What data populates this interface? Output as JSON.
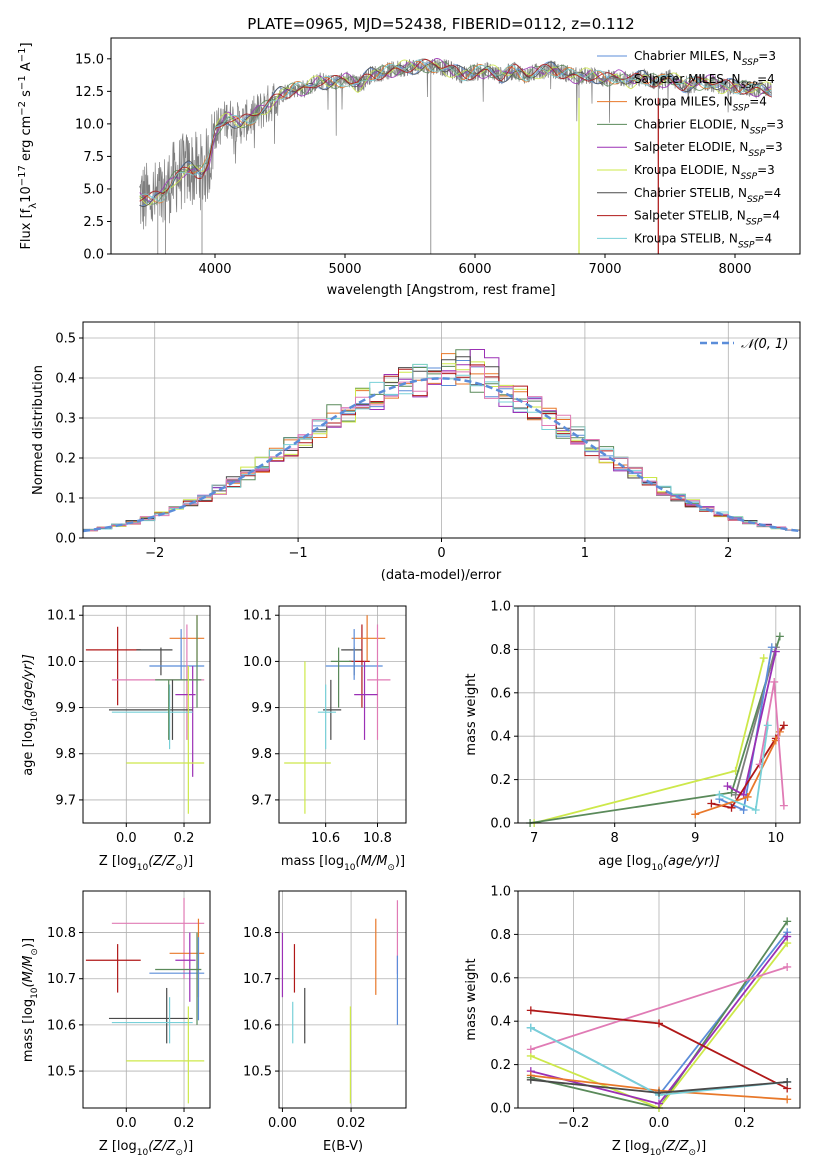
{
  "figure_title": "PLATE=0965, MJD=52438, FIBERID=0112, z=0.112",
  "colors": {
    "Chabrier MILES": "#5b8dd9",
    "Salpeter MILES": "#7e7e7e",
    "Kroupa MILES": "#e8782a",
    "Chabrier ELODIE": "#5a8a5a",
    "Salpeter ELODIE": "#9b30b5",
    "Kroupa ELODIE": "#cde84a",
    "Chabrier STELIB": "#4a4a4a",
    "Salpeter STELIB": "#b01818",
    "Kroupa STELIB": "#78d0d8",
    "Pink": "#e07bb5"
  },
  "chart_data": [
    {
      "id": "spectrum",
      "type": "line",
      "title": "PLATE=0965, MJD=52438, FIBERID=0112, z=0.112",
      "xlabel": "wavelength [Angstrom, rest frame]",
      "ylabel": "Flux [f",
      "ylabel_sub": "λ",
      "ylabel_rest": "10",
      "ylabel_exp": "−17",
      "ylabel_tail": " erg cm",
      "xlim": [
        3200,
        8500
      ],
      "ylim": [
        0,
        16.6
      ],
      "xticks": [
        "4000",
        "5000",
        "6000",
        "7000",
        "8000"
      ],
      "yticks": [
        "0.0",
        "2.5",
        "5.0",
        "7.5",
        "10.0",
        "12.5",
        "15.0"
      ],
      "legend": [
        "Chabrier MILES, N",
        "Salpeter MILES, N",
        "Kroupa MILES, N",
        "Chabrier ELODIE, N",
        "Salpeter ELODIE, N",
        "Kroupa ELODIE, N",
        "Chabrier STELIB, N",
        "Salpeter STELIB, N",
        "Kroupa STELIB, N"
      ],
      "legend_sub": "SSP",
      "legend_vals": [
        "=3",
        "=4",
        "=4",
        "=3",
        "=3",
        "=3",
        "=4",
        "=4",
        "=4"
      ],
      "continuum": [
        [
          3420,
          4.3
        ],
        [
          3500,
          4.1
        ],
        [
          3600,
          4.6
        ],
        [
          3700,
          6.0
        ],
        [
          3800,
          6.6
        ],
        [
          3900,
          6.3
        ],
        [
          3950,
          7.0
        ],
        [
          4000,
          9.5
        ],
        [
          4100,
          10.5
        ],
        [
          4200,
          10.0
        ],
        [
          4300,
          10.6
        ],
        [
          4400,
          11.4
        ],
        [
          4500,
          12.3
        ],
        [
          4600,
          12.7
        ],
        [
          4700,
          12.7
        ],
        [
          4800,
          13.3
        ],
        [
          4900,
          13.1
        ],
        [
          5000,
          13.4
        ],
        [
          5100,
          13.0
        ],
        [
          5200,
          13.8
        ],
        [
          5300,
          14.0
        ],
        [
          5400,
          14.2
        ],
        [
          5500,
          14.4
        ],
        [
          5600,
          14.4
        ],
        [
          5700,
          14.5
        ],
        [
          5800,
          14.2
        ],
        [
          5900,
          13.8
        ],
        [
          6000,
          14.0
        ],
        [
          6100,
          14.1
        ],
        [
          6200,
          13.7
        ],
        [
          6300,
          14.1
        ],
        [
          6400,
          13.7
        ],
        [
          6500,
          14.1
        ],
        [
          6600,
          14.2
        ],
        [
          6700,
          13.9
        ],
        [
          6800,
          13.6
        ],
        [
          6900,
          13.8
        ],
        [
          7000,
          13.4
        ],
        [
          7100,
          13.6
        ],
        [
          7200,
          13.3
        ],
        [
          7300,
          13.6
        ],
        [
          7400,
          13.2
        ],
        [
          7500,
          13.5
        ],
        [
          7600,
          13.0
        ],
        [
          7700,
          13.1
        ],
        [
          7800,
          13.2
        ],
        [
          7900,
          12.9
        ],
        [
          8000,
          12.9
        ],
        [
          8100,
          12.7
        ],
        [
          8200,
          12.7
        ],
        [
          8280,
          12.6
        ]
      ]
    },
    {
      "id": "histogram",
      "type": "bar",
      "xlabel": "(data-model)/error",
      "ylabel": "Normed distribution",
      "xlim": [
        -2.5,
        2.5
      ],
      "ylim": [
        0,
        0.54
      ],
      "xticks": [
        "−2",
        "−1",
        "0",
        "1",
        "2"
      ],
      "yticks": [
        "0.0",
        "0.1",
        "0.2",
        "0.3",
        "0.4",
        "0.5"
      ],
      "legend": [
        "𝒩(0, 1)"
      ],
      "bin_width": 0.1
    },
    {
      "id": "age_vs_Z",
      "type": "scatter",
      "xlabel": "Z [log",
      "xlabel_sub": "10",
      "xlabel_tail": "(Z/Z",
      "xlabel_end": ")]",
      "ylabel": "age  [log",
      "ylabel_sub": "10",
      "ylabel_tail": "(age/yr)]",
      "xlim": [
        -0.15,
        0.29
      ],
      "ylim": [
        9.65,
        10.12
      ],
      "xticks": [
        "0.0",
        "0.2"
      ],
      "yticks": [
        "9.7",
        "9.8",
        "9.9",
        "10.0",
        "10.1"
      ],
      "points": [
        {
          "c": "#b01818",
          "x": -0.03,
          "xe": [
            -0.14,
            0.05
          ],
          "y": 10.025,
          "ye": [
            9.905,
            10.075
          ]
        },
        {
          "c": "#4a4a4a",
          "x": 0.12,
          "xe": [
            0.035,
            0.16
          ],
          "y": 10.025,
          "ye": [
            9.97,
            10.03
          ]
        },
        {
          "c": "#e8782a",
          "x": 0.245,
          "xe": [
            0.15,
            0.27
          ],
          "y": 10.05,
          "ye": [
            10.0,
            10.1
          ]
        },
        {
          "c": "#5b8dd9",
          "x": 0.19,
          "xe": [
            0.08,
            0.27
          ],
          "y": 9.99,
          "ye": [
            9.96,
            10.07
          ]
        },
        {
          "c": "#e07bb5",
          "x": 0.21,
          "xe": [
            -0.05,
            0.27
          ],
          "y": 9.96,
          "ye": [
            9.83,
            10.08
          ]
        },
        {
          "c": "#9b30b5",
          "x": 0.23,
          "xe": [
            0.17,
            0.24
          ],
          "y": 9.928,
          "ye": [
            9.75,
            9.99
          ]
        },
        {
          "c": "#5a8a5a",
          "x": 0.245,
          "xe": [
            0.1,
            0.26
          ],
          "y": 9.96,
          "ye": [
            9.9,
            10.1
          ]
        },
        {
          "c": "#4a4a4a",
          "x": 0.16,
          "xe": [
            -0.06,
            0.23
          ],
          "y": 9.895,
          "ye": [
            9.83,
            9.96
          ]
        },
        {
          "c": "#78d0d8",
          "x": 0.15,
          "xe": [
            -0.05,
            0.23
          ],
          "y": 9.89,
          "ye": [
            9.81,
            9.95
          ]
        },
        {
          "c": "#5a8a5a",
          "x": 0.147,
          "xe": [
            0.14,
            0.15
          ],
          "y": 9.895,
          "ye": [
            9.83,
            9.96
          ]
        },
        {
          "c": "#cde84a",
          "x": 0.215,
          "xe": [
            0.0,
            0.27
          ],
          "y": 9.78,
          "ye": [
            9.67,
            9.99
          ]
        }
      ]
    },
    {
      "id": "age_vs_mass",
      "type": "scatter",
      "xlabel": "mass [log",
      "xlabel_sub": "10",
      "xlabel_tail": "(M/M",
      "xlabel_end": ")]",
      "xlim": [
        10.42,
        10.91
      ],
      "ylim": [
        9.65,
        10.12
      ],
      "xticks": [
        "10.6",
        "10.8"
      ],
      "yticks": [
        "9.7",
        "9.8",
        "9.9",
        "10.0",
        "10.1"
      ],
      "points": [
        {
          "c": "#b01818",
          "x": 10.74,
          "xe": [
            10.69,
            10.77
          ],
          "y": 10.0,
          "ye": [
            9.9,
            10.08
          ]
        },
        {
          "c": "#4a4a4a",
          "x": 10.71,
          "xe": [
            10.66,
            10.74
          ],
          "y": 10.025,
          "ye": [
            9.97,
            10.03
          ]
        },
        {
          "c": "#e8782a",
          "x": 10.76,
          "xe": [
            10.7,
            10.83
          ],
          "y": 10.05,
          "ye": [
            10.0,
            10.1
          ]
        },
        {
          "c": "#5b8dd9",
          "x": 10.71,
          "xe": [
            10.6,
            10.82
          ],
          "y": 9.99,
          "ye": [
            9.96,
            10.07
          ]
        },
        {
          "c": "#e07bb5",
          "x": 10.8,
          "xe": [
            10.76,
            10.85
          ],
          "y": 9.96,
          "ye": [
            9.83,
            10.08
          ]
        },
        {
          "c": "#9b30b5",
          "x": 10.75,
          "xe": [
            10.71,
            10.8
          ],
          "y": 9.928,
          "ye": [
            9.83,
            10.0
          ]
        },
        {
          "c": "#5a8a5a",
          "x": 10.65,
          "xe": [
            10.62,
            10.7
          ],
          "y": 10.0,
          "ye": [
            9.9,
            10.03
          ]
        },
        {
          "c": "#4a4a4a",
          "x": 10.62,
          "xe": [
            10.59,
            10.66
          ],
          "y": 9.895,
          "ye": [
            9.83,
            9.96
          ]
        },
        {
          "c": "#78d0d8",
          "x": 10.6,
          "xe": [
            10.57,
            10.64
          ],
          "y": 9.89,
          "ye": [
            9.81,
            9.95
          ]
        },
        {
          "c": "#cde84a",
          "x": 10.52,
          "xe": [
            10.44,
            10.62
          ],
          "y": 9.78,
          "ye": [
            9.67,
            10.0
          ]
        }
      ]
    },
    {
      "id": "weight_vs_age",
      "type": "line",
      "xlabel": "age  [log",
      "xlabel_sub": "10",
      "xlabel_tail": "(age/yr)]",
      "ylabel": "mass weight",
      "xlim": [
        6.8,
        10.3
      ],
      "ylim": [
        0,
        1.0
      ],
      "xticks": [
        "7",
        "8",
        "9",
        "10"
      ],
      "yticks": [
        "0.0",
        "0.2",
        "0.4",
        "0.6",
        "0.8",
        "1.0"
      ],
      "series": [
        {
          "c": "#cde84a",
          "x": [
            7.0,
            9.5,
            9.85
          ],
          "y": [
            0.0,
            0.24,
            0.76
          ]
        },
        {
          "c": "#5a8a5a",
          "x": [
            6.95,
            9.45,
            10.05
          ],
          "y": [
            0.0,
            0.14,
            0.86
          ]
        },
        {
          "c": "#7e7e7e",
          "x": [
            9.5,
            10.0
          ],
          "y": [
            0.13,
            0.81
          ]
        },
        {
          "c": "#5b8dd9",
          "x": [
            9.3,
            9.6,
            9.95
          ],
          "y": [
            0.11,
            0.06,
            0.81
          ]
        },
        {
          "c": "#9b30b5",
          "x": [
            9.4,
            9.6,
            10.0
          ],
          "y": [
            0.17,
            0.13,
            0.79
          ]
        },
        {
          "c": "#b01818",
          "x": [
            9.2,
            9.45,
            10.0,
            10.1
          ],
          "y": [
            0.09,
            0.07,
            0.39,
            0.45
          ]
        },
        {
          "c": "#e8782a",
          "x": [
            9.0,
            9.65,
            10.0,
            10.05
          ],
          "y": [
            0.04,
            0.12,
            0.38,
            0.42
          ]
        },
        {
          "c": "#e07bb5",
          "x": [
            9.8,
            9.98,
            10.1
          ],
          "y": [
            0.27,
            0.65,
            0.08
          ]
        },
        {
          "c": "#78d0d8",
          "x": [
            9.3,
            9.75,
            9.9
          ],
          "y": [
            0.13,
            0.06,
            0.45
          ]
        }
      ]
    },
    {
      "id": "mass_vs_Z",
      "type": "scatter",
      "xlabel": "Z [log",
      "xlabel_sub": "10",
      "xlabel_tail": "(Z/Z",
      "xlabel_end": ")]",
      "ylabel": "mass [log",
      "ylabel_sub": "10",
      "ylabel_tail": "(M/M",
      "ylabel_end": ")]",
      "xlim": [
        -0.15,
        0.29
      ],
      "ylim": [
        10.42,
        10.89
      ],
      "xticks": [
        "0.0",
        "0.2"
      ],
      "yticks": [
        "10.5",
        "10.6",
        "10.7",
        "10.8"
      ],
      "points": [
        {
          "c": "#b01818",
          "x": -0.03,
          "xe": [
            -0.14,
            0.05
          ],
          "y": 10.74,
          "ye": [
            10.67,
            10.775
          ]
        },
        {
          "c": "#e07bb5",
          "x": 0.2,
          "xe": [
            -0.05,
            0.27
          ],
          "y": 10.82,
          "ye": [
            10.7,
            10.875
          ]
        },
        {
          "c": "#e8782a",
          "x": 0.25,
          "xe": [
            0.15,
            0.27
          ],
          "y": 10.755,
          "ye": [
            10.66,
            10.83
          ]
        },
        {
          "c": "#5b8dd9",
          "x": 0.25,
          "xe": [
            0.08,
            0.27
          ],
          "y": 10.712,
          "ye": [
            10.61,
            10.79
          ]
        },
        {
          "c": "#9b30b5",
          "x": 0.22,
          "xe": [
            0.17,
            0.24
          ],
          "y": 10.74,
          "ye": [
            10.65,
            10.8
          ]
        },
        {
          "c": "#5a8a5a",
          "x": 0.245,
          "xe": [
            0.1,
            0.26
          ],
          "y": 10.72,
          "ye": [
            10.6,
            10.8
          ]
        },
        {
          "c": "#4a4a4a",
          "x": 0.14,
          "xe": [
            -0.06,
            0.23
          ],
          "y": 10.614,
          "ye": [
            10.56,
            10.68
          ]
        },
        {
          "c": "#78d0d8",
          "x": 0.15,
          "xe": [
            -0.05,
            0.23
          ],
          "y": 10.605,
          "ye": [
            10.56,
            10.66
          ]
        },
        {
          "c": "#cde84a",
          "x": 0.215,
          "xe": [
            0.0,
            0.27
          ],
          "y": 10.522,
          "ye": [
            10.43,
            10.64
          ]
        }
      ]
    },
    {
      "id": "mass_vs_ebv",
      "type": "scatter",
      "xlabel": "E(B-V)",
      "xlim": [
        -0.001,
        0.036
      ],
      "ylim": [
        10.42,
        10.89
      ],
      "xticks": [
        "0.00",
        "0.02"
      ],
      "yticks": [
        "10.5",
        "10.6",
        "10.7",
        "10.8"
      ],
      "points": [
        {
          "c": "#9b30b5",
          "x": 0.0,
          "y": 10.74,
          "ye": [
            10.66,
            10.8
          ]
        },
        {
          "c": "#b01818",
          "x": 0.0035,
          "y": 10.74,
          "ye": [
            10.67,
            10.775
          ]
        },
        {
          "c": "#78d0d8",
          "x": 0.003,
          "y": 10.605,
          "ye": [
            10.56,
            10.65
          ]
        },
        {
          "c": "#4a4a4a",
          "x": 0.0065,
          "y": 10.614,
          "ye": [
            10.56,
            10.68
          ]
        },
        {
          "c": "#cde84a",
          "x": 0.0198,
          "y": 10.522,
          "ye": [
            10.43,
            10.64
          ]
        },
        {
          "c": "#e8782a",
          "x": 0.0272,
          "y": 10.755,
          "ye": [
            10.665,
            10.83
          ]
        },
        {
          "c": "#e07bb5",
          "x": 0.0335,
          "y": 10.82,
          "ye": [
            10.71,
            10.87
          ]
        },
        {
          "c": "#5b8dd9",
          "x": 0.0335,
          "y": 10.712,
          "ye": [
            10.6,
            10.75
          ]
        }
      ]
    },
    {
      "id": "weight_vs_Z",
      "type": "line",
      "xlabel": "Z [log",
      "xlabel_sub": "10",
      "xlabel_tail": "(Z/Z",
      "xlabel_end": ")]",
      "ylabel": "mass weight",
      "xlim": [
        -0.33,
        0.33
      ],
      "ylim": [
        0,
        1.0
      ],
      "xticks": [
        "−0.2",
        "0.0",
        "0.2"
      ],
      "yticks": [
        "0.0",
        "0.2",
        "0.4",
        "0.6",
        "0.8",
        "1.0"
      ],
      "series": [
        {
          "c": "#5b8dd9",
          "x": [
            -0.3,
            0.0,
            0.3
          ],
          "y": [
            0.37,
            0.06,
            0.81
          ]
        },
        {
          "c": "#5a8a5a",
          "x": [
            -0.3,
            0.0,
            0.3
          ],
          "y": [
            0.14,
            0.0,
            0.86
          ]
        },
        {
          "c": "#cde84a",
          "x": [
            -0.3,
            0.0,
            0.3
          ],
          "y": [
            0.24,
            0.0,
            0.76
          ]
        },
        {
          "c": "#9b30b5",
          "x": [
            -0.3,
            0.0,
            0.3
          ],
          "y": [
            0.17,
            0.02,
            0.79
          ]
        },
        {
          "c": "#e07bb5",
          "x": [
            -0.3,
            0.3
          ],
          "y": [
            0.27,
            0.65
          ]
        },
        {
          "c": "#b01818",
          "x": [
            -0.3,
            0.0,
            0.3
          ],
          "y": [
            0.45,
            0.39,
            0.09
          ]
        },
        {
          "c": "#e8782a",
          "x": [
            -0.3,
            0.0,
            0.3
          ],
          "y": [
            0.15,
            0.08,
            0.04
          ]
        },
        {
          "c": "#78d0d8",
          "x": [
            -0.3,
            0.0,
            0.3
          ],
          "y": [
            0.37,
            0.06,
            0.12
          ]
        },
        {
          "c": "#4a4a4a",
          "x": [
            -0.3,
            0.0,
            0.3
          ],
          "y": [
            0.13,
            0.07,
            0.12
          ]
        }
      ]
    }
  ]
}
